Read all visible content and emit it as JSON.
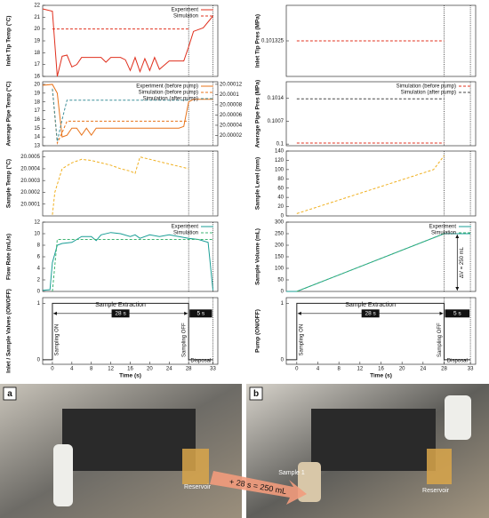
{
  "chart_data": [
    {
      "type": "line",
      "ylabel": "Inlet Tip Temp (°C)",
      "xlim": [
        -2,
        34
      ],
      "ylim": [
        16,
        22
      ],
      "yticks": [
        16,
        17,
        18,
        19,
        20,
        21,
        22
      ],
      "vlines": [
        28,
        33
      ],
      "series": [
        {
          "name": "Experiment",
          "color": "#e0301e",
          "dashed": false,
          "x": [
            -2,
            0,
            1,
            2,
            3,
            4,
            5,
            6,
            8,
            10,
            11,
            12,
            14,
            15,
            16,
            17,
            18,
            19,
            20,
            21,
            22,
            24,
            27,
            28,
            29,
            31,
            33
          ],
          "values": [
            21.7,
            21.5,
            16,
            17.7,
            17.8,
            16.8,
            17,
            17.6,
            17.6,
            17.6,
            17.2,
            17.6,
            17.6,
            17.4,
            16.5,
            17.6,
            16.4,
            17.5,
            16.5,
            17.6,
            16.6,
            17.3,
            17.3,
            18.5,
            19.8,
            20.1,
            21.1
          ]
        },
        {
          "name": "Simulation",
          "color": "#e0301e",
          "dashed": true,
          "x": [
            0,
            28
          ],
          "values": [
            20,
            20
          ]
        }
      ]
    },
    {
      "type": "line",
      "ylabel": "Average Pipe Temp (°C)",
      "xlim": [
        -2,
        34
      ],
      "ylim": [
        13,
        20.3
      ],
      "yticks": [
        13,
        14,
        15,
        16,
        17,
        18,
        19,
        20
      ],
      "y2lim": [
        20,
        20.000125
      ],
      "y2ticks": [
        20.00002,
        20.00004,
        20.00006,
        20.00008,
        20.0001,
        20.00012
      ],
      "vlines": [
        28,
        33
      ],
      "series": [
        {
          "name": "Experiment (before pump)",
          "color": "#e8731a",
          "dashed": false,
          "x": [
            -2,
            0,
            1,
            2,
            3,
            4,
            5,
            6,
            7,
            8,
            9,
            10,
            12,
            14,
            16,
            18,
            20,
            22,
            24,
            26,
            27,
            28,
            29,
            33
          ],
          "values": [
            19.9,
            20,
            19,
            14,
            14.2,
            15,
            15,
            14.2,
            15,
            14.2,
            15,
            15,
            15,
            15,
            15,
            15,
            15,
            15,
            15,
            15,
            15.2,
            18,
            18.3,
            18.3
          ]
        },
        {
          "name": "Simulation (before pump)",
          "color": "#e8731a",
          "dashed": true,
          "x": [
            0,
            1,
            2,
            3,
            28
          ],
          "values": [
            19.5,
            13.3,
            14.5,
            15.8,
            15.8
          ]
        },
        {
          "name": "Simulation (after pump)",
          "color": "#3f8f9a",
          "dashed": true,
          "x": [
            0,
            1,
            2,
            3,
            28
          ],
          "values": [
            19.5,
            13.5,
            16,
            18.2,
            18.2
          ]
        }
      ]
    },
    {
      "type": "line",
      "ylabel": "Sample Temp (°C)",
      "xlim": [
        -2,
        34
      ],
      "ylim": [
        20,
        20.00055
      ],
      "yticks": [
        20.0001,
        20.0002,
        20.0003,
        20.0004,
        20.0005
      ],
      "vlines": [
        28,
        33
      ],
      "series": [
        {
          "color": "#f0b020",
          "dashed": true,
          "x": [
            0,
            0.5,
            2,
            4,
            6,
            8,
            10,
            12,
            14,
            16,
            17,
            18,
            20,
            22,
            24,
            26,
            28
          ],
          "values": [
            20.00001,
            20.0002,
            20.0004,
            20.00045,
            20.00048,
            20.00047,
            20.00045,
            20.00043,
            20.0004,
            20.00038,
            20.00036,
            20.0005,
            20.00048,
            20.00046,
            20.00044,
            20.00042,
            20.0004
          ]
        }
      ]
    },
    {
      "type": "line",
      "ylabel": "Flow Rate (mL/s)",
      "xlim": [
        -2,
        34
      ],
      "ylim": [
        0,
        12
      ],
      "yticks": [
        0,
        2,
        4,
        6,
        8,
        10,
        12
      ],
      "vlines": [
        28,
        33
      ],
      "series": [
        {
          "name": "Experiment",
          "color": "#1a9e96",
          "dashed": false,
          "x": [
            -2,
            -0.5,
            0,
            1,
            2,
            4,
            6,
            8,
            9,
            10,
            12,
            14,
            16,
            17,
            18,
            20,
            22,
            24,
            26,
            28,
            30,
            32,
            33
          ],
          "values": [
            0.2,
            0.3,
            5,
            8,
            8.3,
            8.5,
            9.5,
            9.5,
            8.8,
            9.8,
            10.2,
            10,
            9.5,
            9.8,
            9.2,
            9.8,
            9.5,
            9.8,
            9.5,
            9.2,
            9,
            8.5,
            0.2
          ]
        },
        {
          "name": "Simulation",
          "color": "#3cb371",
          "dashed": true,
          "x": [
            0,
            1,
            28,
            33
          ],
          "values": [
            0,
            9,
            9,
            9
          ]
        }
      ]
    },
    {
      "type": "line",
      "ylabel": "Inlet / Sample Valves (ON/OFF)",
      "xlabel": "Time (s)",
      "xlim": [
        -2,
        34
      ],
      "ylim": [
        -0.08,
        1.1
      ],
      "yticks": [
        0,
        1
      ],
      "xticks": [
        0,
        4,
        8,
        12,
        16,
        20,
        24,
        28,
        33
      ],
      "vlines": [
        28,
        33
      ],
      "annotations": [
        "Sample Extraction",
        "28 s",
        "5 s",
        "Sampling ON",
        "Sampling OFF",
        "Disposal"
      ],
      "series": [
        {
          "color": "#222222",
          "dashed": false,
          "x": [
            -2,
            0,
            0,
            28,
            28,
            33
          ],
          "values": [
            0,
            0,
            1,
            1,
            0,
            0
          ]
        }
      ]
    },
    {
      "type": "line",
      "ylabel": "Inlet Tip Pres (MPa)",
      "xlim": [
        -2,
        34
      ],
      "ylim": [
        0.1012,
        0.10145
      ],
      "yticks": [
        0.101325
      ],
      "vlines": [
        28,
        33
      ],
      "series": [
        {
          "color": "#e0301e",
          "dashed": true,
          "x": [
            0,
            28
          ],
          "values": [
            0.101325,
            0.101325
          ]
        }
      ]
    },
    {
      "type": "line",
      "ylabel": "Average Pipe Pres (MPa)",
      "xlim": [
        -2,
        34
      ],
      "ylim": [
        0.09995,
        0.1019
      ],
      "yticks": [
        0.1,
        0.1007,
        0.1014
      ],
      "vlines": [
        28,
        33
      ],
      "series": [
        {
          "name": "Simulation (before pump)",
          "color": "#e0301e",
          "dashed": true,
          "x": [
            0,
            28
          ],
          "values": [
            0.10003,
            0.10003
          ]
        },
        {
          "name": "Simulation (after pump)",
          "color": "#444444",
          "dashed": true,
          "x": [
            0,
            28
          ],
          "values": [
            0.10138,
            0.10138
          ]
        }
      ]
    },
    {
      "type": "line",
      "ylabel": "Sample Level (mm)",
      "xlim": [
        -2,
        34
      ],
      "ylim": [
        0,
        140
      ],
      "yticks": [
        0,
        20,
        40,
        60,
        80,
        100,
        120,
        140
      ],
      "vlines": [
        28,
        33
      ],
      "series": [
        {
          "color": "#f0b020",
          "dashed": true,
          "x": [
            0,
            26,
            28
          ],
          "values": [
            5,
            100,
            130
          ]
        }
      ]
    },
    {
      "type": "line",
      "ylabel": "Sample Volume (mL)",
      "xlim": [
        -2,
        34
      ],
      "ylim": [
        0,
        300
      ],
      "yticks": [
        0,
        50,
        100,
        150,
        200,
        250,
        300
      ],
      "vlines": [
        28,
        33
      ],
      "annotations": [
        "ΔV = 250 mL"
      ],
      "series": [
        {
          "name": "Experiment",
          "color": "#1a9e96",
          "dashed": false,
          "x": [
            -2,
            0,
            28,
            29,
            33
          ],
          "values": [
            0,
            0,
            250,
            250,
            250
          ]
        },
        {
          "name": "Simulation",
          "color": "#3cb371",
          "dashed": true,
          "x": [
            0,
            28
          ],
          "values": [
            0,
            250
          ]
        }
      ]
    },
    {
      "type": "line",
      "ylabel": "Pump (ON/OFF)",
      "xlabel": "Time (s)",
      "xlim": [
        -2,
        34
      ],
      "ylim": [
        -0.08,
        1.1
      ],
      "yticks": [
        0,
        1
      ],
      "xticks": [
        0,
        4,
        8,
        12,
        16,
        20,
        24,
        28,
        33
      ],
      "vlines": [
        28,
        33
      ],
      "annotations": [
        "Sample Extraction",
        "28 s",
        "5 s",
        "Sampling ON",
        "Sampling OFF",
        "Disposal"
      ],
      "series": [
        {
          "color": "#222222",
          "dashed": false,
          "x": [
            -2,
            0,
            0,
            28,
            28,
            33
          ],
          "values": [
            0,
            0,
            1,
            1,
            0,
            0
          ]
        }
      ]
    }
  ],
  "photos": [
    {
      "label": "a",
      "notes": [
        "Reservoir"
      ]
    },
    {
      "label": "b",
      "notes": [
        "Sample 1",
        "Reservoir"
      ]
    }
  ],
  "arrow_label": "+ 28 s = 250 mL"
}
